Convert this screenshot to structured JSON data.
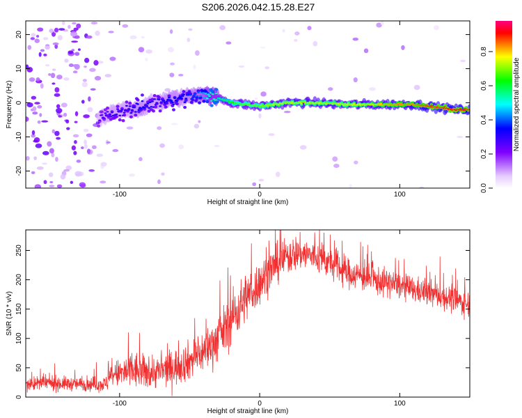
{
  "title": "S206.2026.042.15.28.E27",
  "chart_data": [
    {
      "type": "heatmap",
      "name": "spectrogram",
      "xlabel": "Height of straight line (km)",
      "ylabel": "Frequency (Hz)",
      "xlim": [
        -167,
        150
      ],
      "ylim": [
        -25,
        24
      ],
      "xticks": [
        -100,
        0,
        100
      ],
      "xtick_labels": [
        "-100",
        "0",
        "100"
      ],
      "yticks": [
        -20,
        -10,
        0,
        10,
        20
      ],
      "ytick_labels": [
        "-20",
        "-10",
        "0",
        "10",
        "20"
      ],
      "colorbar": {
        "label": "Normalized spectral amplitude",
        "range": [
          0.0,
          0.98
        ],
        "ticks": [
          0.0,
          0.2,
          0.4,
          0.6,
          0.8
        ],
        "tick_labels": [
          "0.0",
          "0.2",
          "0.4",
          "0.6",
          "0.8"
        ],
        "colormap": [
          "#ffffff",
          "#e6ccff",
          "#b266ff",
          "#7f00ff",
          "#4000ff",
          "#0000ff",
          "#0080ff",
          "#00ffff",
          "#00ff80",
          "#00ff00",
          "#80ff00",
          "#ffff00",
          "#ff8000",
          "#ff0000",
          "#ff0080"
        ]
      },
      "ridge": {
        "x": [
          -115,
          -105,
          -95,
          -85,
          -75,
          -65,
          -55,
          -45,
          -40,
          -35,
          -30,
          -20,
          -10,
          0,
          10,
          20,
          40,
          60,
          80,
          100,
          110,
          120,
          130,
          140,
          150
        ],
        "frequency": [
          -5,
          -3,
          -2,
          -1.5,
          0,
          1,
          1.5,
          2.5,
          2.5,
          2,
          1.5,
          0,
          -0.5,
          -1,
          -0.5,
          0,
          0,
          -0.5,
          -0.5,
          -0.5,
          -0.5,
          -1,
          -1.5,
          -2,
          -2
        ],
        "amplitude": [
          0.25,
          0.3,
          0.3,
          0.35,
          0.3,
          0.35,
          0.35,
          0.4,
          0.45,
          0.55,
          0.55,
          0.65,
          0.7,
          0.7,
          0.75,
          0.75,
          0.75,
          0.75,
          0.8,
          0.85,
          0.85,
          0.9,
          0.9,
          0.92,
          0.9
        ]
      }
    },
    {
      "type": "line",
      "name": "snr",
      "xlabel": "Height of straight line (km)",
      "ylabel": "SNR (10 * v/v)",
      "xlim": [
        -167,
        150
      ],
      "ylim": [
        0,
        285
      ],
      "xticks": [
        -100,
        0,
        100
      ],
      "xtick_labels": [
        "-100",
        "0",
        "100"
      ],
      "yticks": [
        0,
        50,
        100,
        150,
        200,
        250
      ],
      "ytick_labels": [
        "0",
        "50",
        "100",
        "150",
        "200",
        "250"
      ],
      "color": "#f03030",
      "series": [
        {
          "name": "SNR",
          "x": [
            -167,
            -150,
            -130,
            -110,
            -105,
            -100,
            -95,
            -90,
            -80,
            -70,
            -60,
            -50,
            -45,
            -40,
            -35,
            -30,
            -25,
            -20,
            -15,
            -10,
            -5,
            0,
            5,
            10,
            15,
            20,
            25,
            30,
            35,
            40,
            45,
            50,
            55,
            60,
            65,
            70,
            80,
            90,
            100,
            110,
            120,
            130,
            140,
            150
          ],
          "mean": [
            22,
            24,
            22,
            22,
            38,
            40,
            42,
            45,
            42,
            44,
            52,
            62,
            70,
            78,
            88,
            100,
            115,
            135,
            150,
            170,
            180,
            195,
            210,
            222,
            232,
            240,
            245,
            245,
            242,
            238,
            235,
            228,
            222,
            215,
            210,
            208,
            200,
            195,
            190,
            182,
            178,
            172,
            165,
            158
          ],
          "spread": [
            10,
            12,
            10,
            12,
            20,
            22,
            28,
            30,
            25,
            26,
            28,
            30,
            30,
            32,
            34,
            36,
            38,
            40,
            40,
            38,
            36,
            34,
            32,
            30,
            30,
            28,
            28,
            26,
            26,
            24,
            24,
            24,
            24,
            24,
            22,
            22,
            22,
            22,
            20,
            20,
            20,
            20,
            20,
            20
          ]
        }
      ]
    }
  ]
}
